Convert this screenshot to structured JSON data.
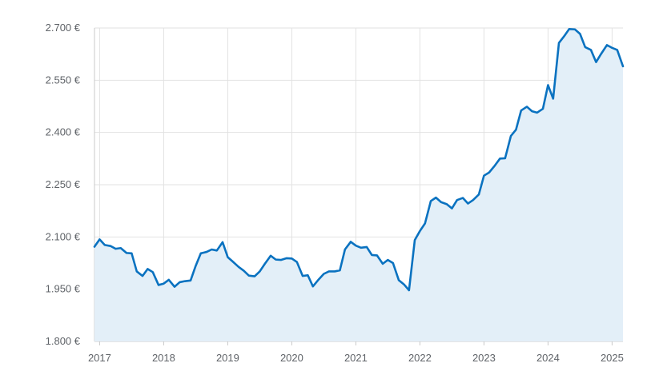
{
  "chart_data": {
    "type": "area",
    "title": "",
    "xlabel": "",
    "ylabel": "",
    "y_tick_labels": [
      "1.800 €",
      "1.950 €",
      "2.100 €",
      "2.250 €",
      "2.400 €",
      "2.550 €",
      "2.700 €"
    ],
    "y_ticks": [
      1800,
      1950,
      2100,
      2250,
      2400,
      2550,
      2700
    ],
    "x_tick_labels": [
      "2017",
      "2018",
      "2019",
      "2020",
      "2021",
      "2022",
      "2023",
      "2024",
      "2025"
    ],
    "x_ticks": [
      2017,
      2018,
      2019,
      2020,
      2021,
      2022,
      2023,
      2024,
      2025
    ],
    "ylim": [
      1800,
      2700
    ],
    "xlim": [
      2016.92,
      2025.17
    ],
    "grid": true,
    "colors": {
      "line": "#0a72c0",
      "fill": "#e3eff8",
      "grid": "#e2e2e2",
      "axis": "#c8c8c8"
    },
    "series": [
      {
        "points": [
          [
            2016.92,
            2072
          ],
          [
            2017.0,
            2093
          ],
          [
            2017.08,
            2077
          ],
          [
            2017.17,
            2074
          ],
          [
            2017.25,
            2066
          ],
          [
            2017.33,
            2068
          ],
          [
            2017.42,
            2054
          ],
          [
            2017.5,
            2053
          ],
          [
            2017.58,
            2001
          ],
          [
            2017.67,
            1988
          ],
          [
            2017.75,
            2008
          ],
          [
            2017.83,
            1999
          ],
          [
            2017.92,
            1962
          ],
          [
            2018.0,
            1966
          ],
          [
            2018.08,
            1977
          ],
          [
            2018.17,
            1957
          ],
          [
            2018.25,
            1970
          ],
          [
            2018.33,
            1973
          ],
          [
            2018.42,
            1975
          ],
          [
            2018.5,
            2017
          ],
          [
            2018.58,
            2053
          ],
          [
            2018.67,
            2057
          ],
          [
            2018.75,
            2064
          ],
          [
            2018.83,
            2061
          ],
          [
            2018.92,
            2085
          ],
          [
            2019.0,
            2042
          ],
          [
            2019.08,
            2029
          ],
          [
            2019.17,
            2014
          ],
          [
            2019.25,
            2003
          ],
          [
            2019.33,
            1989
          ],
          [
            2019.42,
            1987
          ],
          [
            2019.5,
            2001
          ],
          [
            2019.58,
            2023
          ],
          [
            2019.67,
            2046
          ],
          [
            2019.75,
            2035
          ],
          [
            2019.83,
            2034
          ],
          [
            2019.92,
            2039
          ],
          [
            2020.0,
            2038
          ],
          [
            2020.08,
            2028
          ],
          [
            2020.17,
            1988
          ],
          [
            2020.25,
            1990
          ],
          [
            2020.33,
            1958
          ],
          [
            2020.42,
            1978
          ],
          [
            2020.5,
            1994
          ],
          [
            2020.58,
            2001
          ],
          [
            2020.67,
            2001
          ],
          [
            2020.75,
            2004
          ],
          [
            2020.83,
            2064
          ],
          [
            2020.92,
            2086
          ],
          [
            2021.0,
            2075
          ],
          [
            2021.08,
            2069
          ],
          [
            2021.17,
            2071
          ],
          [
            2021.25,
            2048
          ],
          [
            2021.33,
            2047
          ],
          [
            2021.42,
            2023
          ],
          [
            2021.5,
            2034
          ],
          [
            2021.58,
            2025
          ],
          [
            2021.67,
            1976
          ],
          [
            2021.75,
            1964
          ],
          [
            2021.83,
            1947
          ],
          [
            2021.92,
            2091
          ],
          [
            2022.0,
            2117
          ],
          [
            2022.08,
            2139
          ],
          [
            2022.17,
            2203
          ],
          [
            2022.25,
            2213
          ],
          [
            2022.33,
            2200
          ],
          [
            2022.42,
            2194
          ],
          [
            2022.5,
            2182
          ],
          [
            2022.58,
            2206
          ],
          [
            2022.67,
            2212
          ],
          [
            2022.75,
            2196
          ],
          [
            2022.83,
            2206
          ],
          [
            2022.92,
            2222
          ],
          [
            2023.0,
            2276
          ],
          [
            2023.08,
            2285
          ],
          [
            2023.17,
            2305
          ],
          [
            2023.25,
            2325
          ],
          [
            2023.33,
            2326
          ],
          [
            2023.42,
            2390
          ],
          [
            2023.5,
            2408
          ],
          [
            2023.58,
            2463
          ],
          [
            2023.67,
            2474
          ],
          [
            2023.75,
            2461
          ],
          [
            2023.83,
            2457
          ],
          [
            2023.92,
            2468
          ],
          [
            2024.0,
            2536
          ],
          [
            2024.08,
            2497
          ],
          [
            2024.17,
            2657
          ],
          [
            2024.25,
            2676
          ],
          [
            2024.33,
            2697
          ],
          [
            2024.42,
            2696
          ],
          [
            2024.5,
            2683
          ],
          [
            2024.58,
            2645
          ],
          [
            2024.67,
            2637
          ],
          [
            2024.75,
            2602
          ],
          [
            2024.83,
            2626
          ],
          [
            2024.92,
            2651
          ],
          [
            2025.0,
            2643
          ],
          [
            2025.08,
            2637
          ],
          [
            2025.17,
            2590
          ]
        ]
      }
    ]
  }
}
